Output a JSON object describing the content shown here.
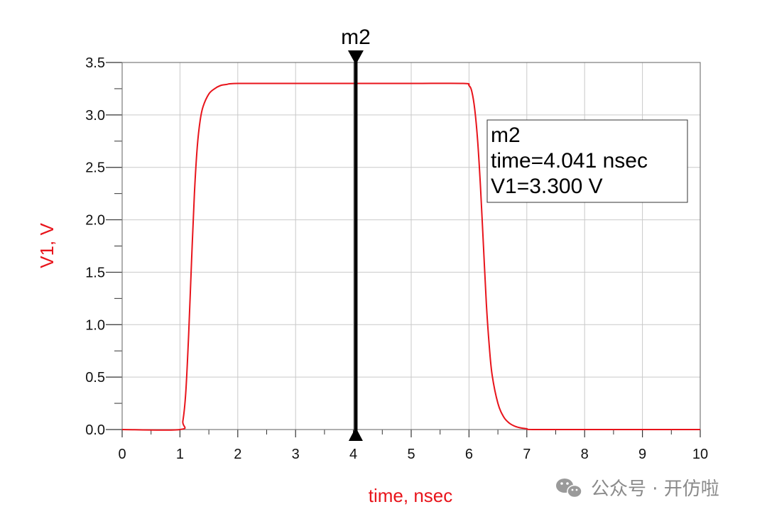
{
  "chart_data": {
    "type": "line",
    "xlabel": "time, nsec",
    "ylabel": "V1, V",
    "xlim": [
      0,
      10
    ],
    "ylim": [
      0,
      3.5
    ],
    "x_ticks": [
      "0",
      "1",
      "2",
      "3",
      "4",
      "5",
      "6",
      "7",
      "8",
      "9",
      "10"
    ],
    "y_ticks": [
      "0.0",
      "0.5",
      "1.0",
      "1.5",
      "2.0",
      "2.5",
      "3.0",
      "3.5"
    ],
    "grid": true,
    "series": [
      {
        "color": "#e8141b",
        "x": [
          0,
          1.0,
          1.05,
          1.1,
          1.15,
          1.2,
          1.25,
          1.3,
          1.35,
          1.4,
          1.5,
          1.6,
          1.7,
          1.8,
          2.0,
          3.0,
          4.0,
          5.0,
          5.9,
          6.0,
          6.05,
          6.1,
          6.15,
          6.2,
          6.25,
          6.3,
          6.35,
          6.4,
          6.5,
          6.6,
          6.7,
          6.8,
          6.9,
          7.0,
          7.1,
          8.0,
          9.0,
          10.0
        ],
        "y": [
          0,
          0,
          0.08,
          0.35,
          0.9,
          1.6,
          2.25,
          2.7,
          2.95,
          3.08,
          3.2,
          3.25,
          3.28,
          3.29,
          3.3,
          3.3,
          3.3,
          3.3,
          3.3,
          3.28,
          3.22,
          3.05,
          2.75,
          2.3,
          1.75,
          1.2,
          0.8,
          0.52,
          0.25,
          0.12,
          0.06,
          0.03,
          0.015,
          0.008,
          0.0,
          0.0,
          0.0,
          0.0
        ]
      }
    ],
    "marker": {
      "name": "m2",
      "x": 4.041,
      "readout": [
        "m2",
        "time=4.041 nsec",
        "V1=3.300  V"
      ]
    }
  },
  "colors": {
    "trace": "#e8141b",
    "axis_title": "#e8141b",
    "grid": "#c9c9c9",
    "marker": "#000000"
  },
  "watermark": {
    "icon": "wechat-icon",
    "text": "公众号 · 开仿啦"
  }
}
